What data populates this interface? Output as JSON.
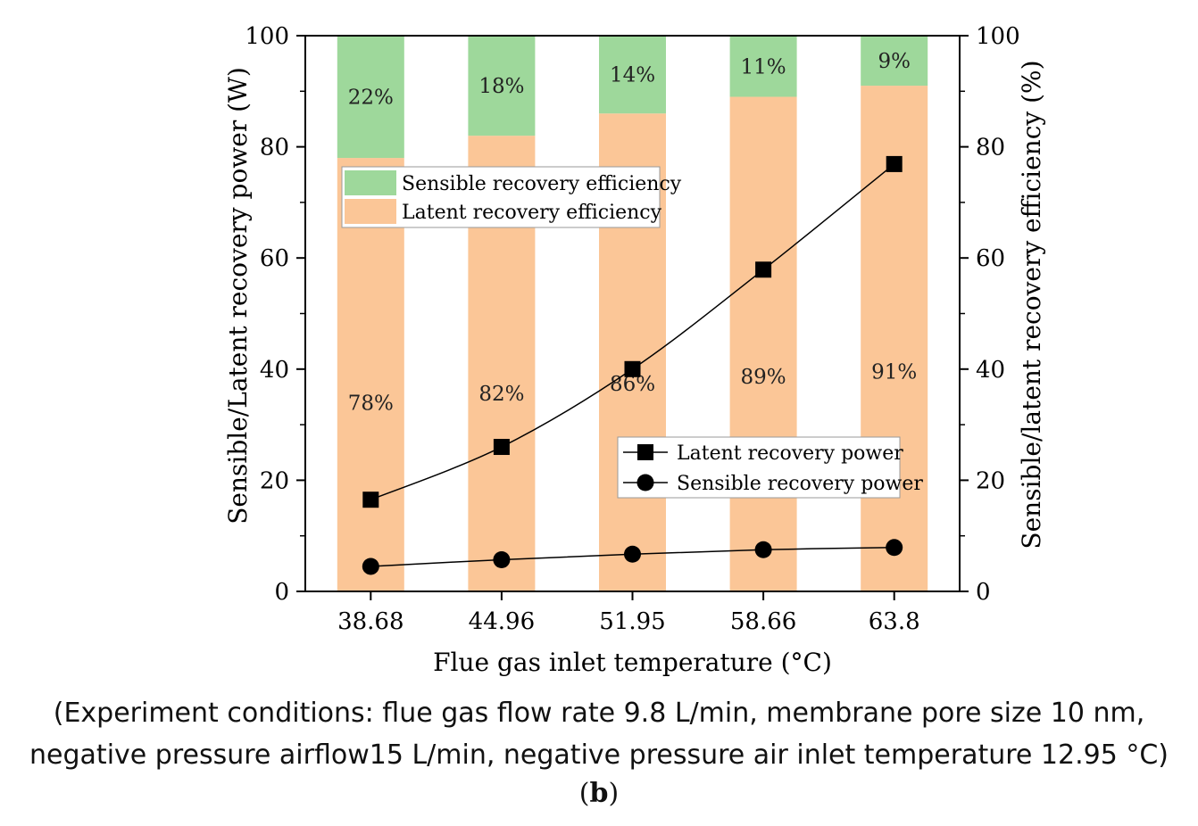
{
  "chart_data": {
    "type": "bar",
    "categories": [
      "38.68",
      "44.96",
      "51.95",
      "58.66",
      "63.8"
    ],
    "xlabel": "Flue gas inlet temperature (°C)",
    "ylabel_left": "Sensible/Latent recovery power (W)",
    "ylabel_right": "Sensible/latent recovery efficiency (%)",
    "ylim": [
      0,
      100
    ],
    "y_ticks": [
      "0",
      "20",
      "40",
      "60",
      "80",
      "100"
    ],
    "stacked_bars": [
      {
        "name": "Latent recovery efficiency",
        "color": "#fbc697",
        "values": [
          78,
          82,
          86,
          89,
          91
        ],
        "labels": [
          "78%",
          "82%",
          "86%",
          "89%",
          "91%"
        ]
      },
      {
        "name": "Sensible recovery efficiency",
        "color": "#9ed89b",
        "values": [
          22,
          18,
          14,
          11,
          9
        ],
        "labels": [
          "22%",
          "18%",
          "14%",
          "11%",
          "9%"
        ]
      }
    ],
    "lines": [
      {
        "name": "Latent recovery power",
        "marker": "square",
        "values": [
          16.5,
          26.0,
          40.0,
          57.9,
          76.9
        ]
      },
      {
        "name": "Sensible recovery power",
        "marker": "circle",
        "values": [
          4.5,
          5.7,
          6.7,
          7.5,
          7.9
        ]
      }
    ],
    "legend_bars_position": "upper-left",
    "legend_lines_position": "lower-right"
  },
  "caption": {
    "line1": "(Experiment conditions: flue gas flow rate 9.8 L/min, membrane pore size 10 nm,",
    "line2": "negative pressure airflow15 L/min, negative pressure air inlet temperature 12.95 °C)",
    "label_open": "(",
    "label_bold": "b",
    "label_close": ")"
  }
}
